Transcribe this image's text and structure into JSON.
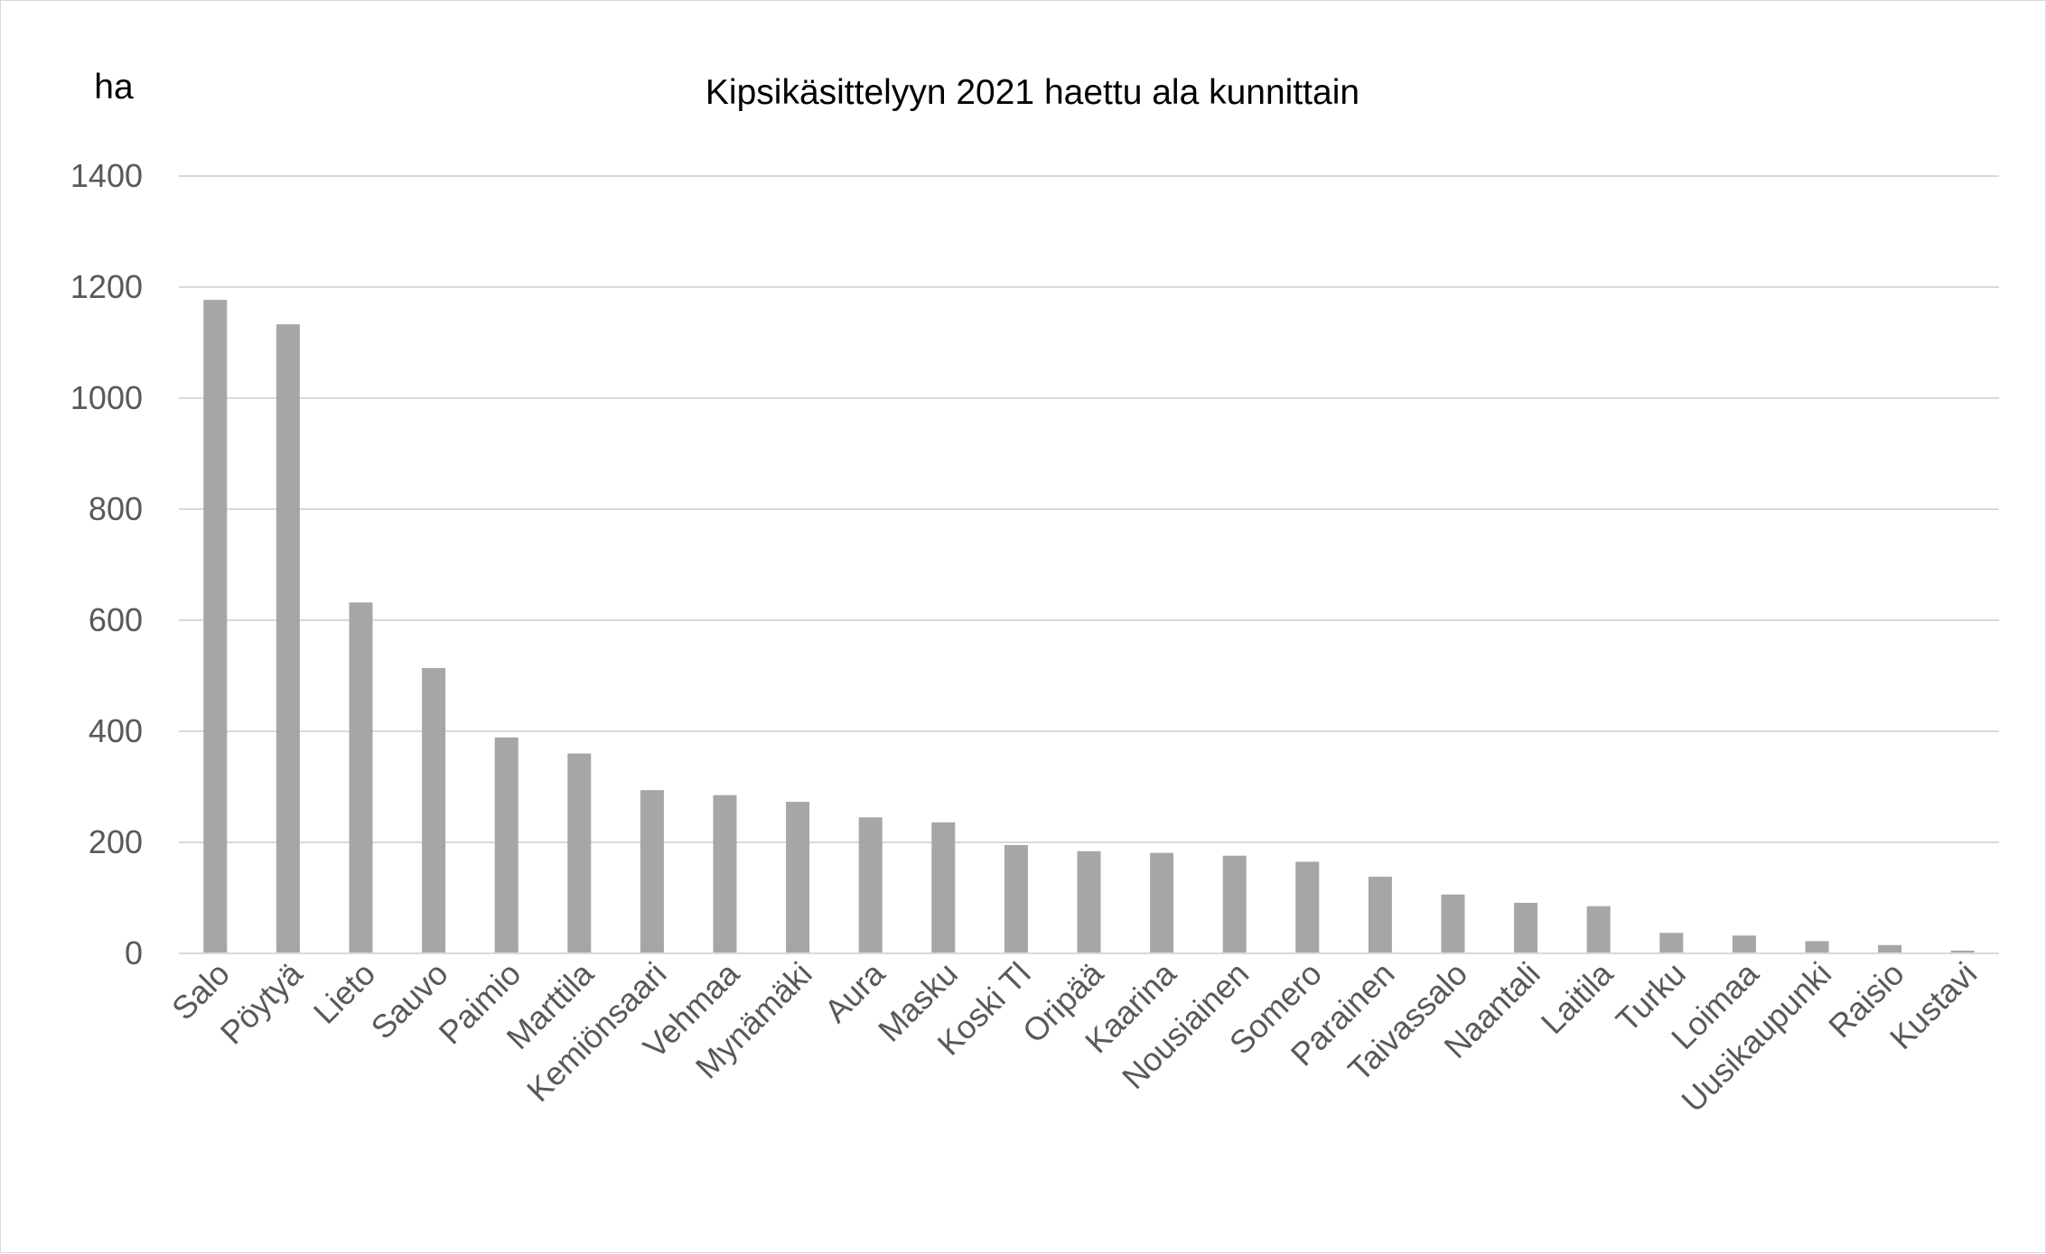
{
  "chart_data": {
    "type": "bar",
    "title": "Kipsikäsittelyyn 2021 haettu ala kunnittain",
    "ylabel": "ha",
    "xlabel": "",
    "ylim": [
      0,
      1400
    ],
    "yticks": [
      0,
      200,
      400,
      600,
      800,
      1000,
      1200,
      1400
    ],
    "grid": true,
    "legend": "none",
    "bar_color": "#a6a6a6",
    "grid_color": "#d9d9d9",
    "categories": [
      "Salo",
      "Pöytyä",
      "Lieto",
      "Sauvo",
      "Paimio",
      "Marttila",
      "Kemiönsaari",
      "Vehmaa",
      "Mynämäki",
      "Aura",
      "Masku",
      "Koski Tl",
      "Oripää",
      "Kaarina",
      "Nousiainen",
      "Somero",
      "Parainen",
      "Taivassalo",
      "Naantali",
      "Laitila",
      "Turku",
      "Loimaa",
      "Uusikaupunki",
      "Raisio",
      "Kustavi"
    ],
    "values": [
      1177,
      1133,
      632,
      514,
      389,
      360,
      294,
      285,
      273,
      245,
      236,
      195,
      184,
      181,
      176,
      165,
      138,
      106,
      91,
      85,
      37,
      32,
      22,
      15,
      5
    ]
  }
}
